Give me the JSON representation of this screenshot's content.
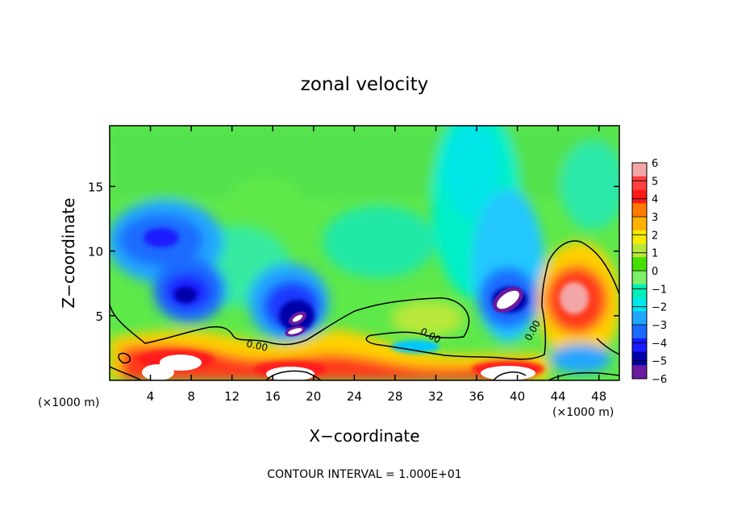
{
  "chart_data": {
    "type": "heatmap",
    "title": "zonal velocity",
    "xlabel": "X−coordinate",
    "ylabel": "Z−coordinate",
    "x_unit_left": "(×1000 m)",
    "x_unit_right": "(×1000 m)",
    "xlim": [
      0,
      50
    ],
    "ylim": [
      0,
      19.7
    ],
    "x_ticks": [
      4,
      8,
      12,
      16,
      20,
      24,
      28,
      32,
      36,
      40,
      44,
      48
    ],
    "y_ticks": [
      5,
      10,
      15
    ],
    "colorbar": {
      "levels": [
        6,
        5,
        4,
        3,
        2,
        1,
        0,
        -1,
        -2,
        -3,
        -4,
        -5,
        -6
      ],
      "labels": [
        "6",
        "5",
        "4",
        "3",
        "2",
        "1",
        "0",
        "−1",
        "−2",
        "−3",
        "−4",
        "−5",
        "−6"
      ],
      "colors": [
        "#f4a6a6",
        "#ff4040",
        "#ff1a1a",
        "#ff7a00",
        "#ffb000",
        "#f6ea00",
        "#b8e83a",
        "#46e000",
        "#7cf06a",
        "#00f0b8",
        "#00e8e8",
        "#20a6ff",
        "#1a6aff",
        "#1a1aff",
        "#0000a8",
        "#6a1aa0"
      ]
    },
    "contour_labels": [
      "0.00",
      "0.00",
      "0.00"
    ],
    "footer": "CONTOUR INTERVAL = 1.000E+01",
    "features": [
      {
        "kind": "min",
        "x": 4.8,
        "z": 11.2,
        "value": -3.5
      },
      {
        "kind": "min",
        "x": 7.5,
        "z": 6.8,
        "value": -4.5
      },
      {
        "kind": "min",
        "x": 18.5,
        "z": 5.2,
        "value": -6
      },
      {
        "kind": "min",
        "x": 38.5,
        "z": 6.3,
        "value": -6
      },
      {
        "kind": "max",
        "x": 45.5,
        "z": 6.5,
        "value": 5.5
      },
      {
        "kind": "max",
        "x": 7,
        "z": 2,
        "value": 6
      },
      {
        "kind": "max",
        "x": 19,
        "z": 1.5,
        "value": 6
      },
      {
        "kind": "max",
        "x": 39,
        "z": 1.5,
        "value": 6
      }
    ]
  }
}
